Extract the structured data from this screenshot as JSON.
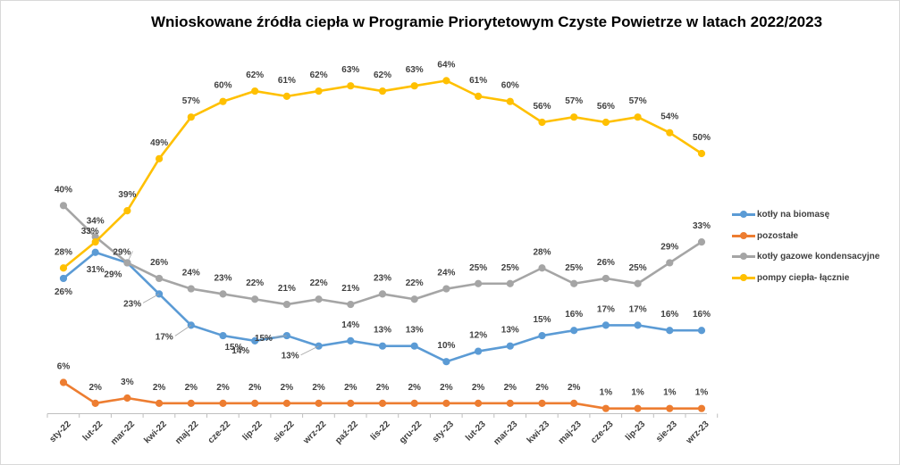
{
  "chart_data": {
    "type": "line",
    "title": "Wnioskowane źródła ciepła w Programie Priorytetowym Czyste Powietrze w latach 2022/2023",
    "xlabel": "",
    "ylabel": "",
    "ylim": [
      0,
      70
    ],
    "grid": false,
    "legend_position": "right",
    "categories": [
      "sty-22",
      "lut-22",
      "mar-22",
      "kwi-22",
      "maj-22",
      "cze-22",
      "lip-22",
      "sie-22",
      "wrz-22",
      "paź-22",
      "lis-22",
      "gru-22",
      "sty-23",
      "lut-23",
      "mar-23",
      "kwi-23",
      "maj-23",
      "cze-23",
      "lip-23",
      "sie-23",
      "wrz-23"
    ],
    "series": [
      {
        "name": "kotły na biomasę",
        "color": "#5b9bd5",
        "values": [
          26,
          31,
          29,
          23,
          17,
          15,
          14,
          15,
          13,
          14,
          13,
          13,
          10,
          12,
          13,
          15,
          16,
          17,
          17,
          16,
          16
        ],
        "labels": [
          "26%",
          "31%",
          "29%",
          "23%",
          "17%",
          "15%",
          "14%",
          "15%",
          "13%",
          "14%",
          "13%",
          "13%",
          "10%",
          "12%",
          "13%",
          "15%",
          "16%",
          "17%",
          "17%",
          "16%",
          "16%"
        ]
      },
      {
        "name": "pozostałe",
        "color": "#ed7d31",
        "values": [
          6,
          2,
          3,
          2,
          2,
          2,
          2,
          2,
          2,
          2,
          2,
          2,
          2,
          2,
          2,
          2,
          2,
          1,
          1,
          1,
          1
        ],
        "labels": [
          "6%",
          "2%",
          "3%",
          "2%",
          "2%",
          "2%",
          "2%",
          "2%",
          "2%",
          "2%",
          "2%",
          "2%",
          "2%",
          "2%",
          "2%",
          "2%",
          "2%",
          "1%",
          "1%",
          "1%",
          "1%"
        ]
      },
      {
        "name": "kotły gazowe kondensacyjne",
        "color": "#a5a5a5",
        "values": [
          40,
          34,
          29,
          26,
          24,
          23,
          22,
          21,
          22,
          21,
          23,
          22,
          24,
          25,
          25,
          28,
          25,
          26,
          25,
          29,
          33
        ],
        "labels": [
          "40%",
          "34%",
          "29%",
          "26%",
          "24%",
          "23%",
          "22%",
          "21%",
          "22%",
          "21%",
          "23%",
          "22%",
          "24%",
          "25%",
          "25%",
          "28%",
          "25%",
          "26%",
          "25%",
          "29%",
          "33%"
        ]
      },
      {
        "name": "pompy ciepła- łącznie",
        "color": "#ffc000",
        "values": [
          28,
          33,
          39,
          49,
          57,
          60,
          62,
          61,
          62,
          63,
          62,
          63,
          64,
          61,
          60,
          56,
          57,
          56,
          57,
          54,
          50
        ],
        "labels": [
          "28%",
          "33%",
          "39%",
          "49%",
          "57%",
          "60%",
          "62%",
          "61%",
          "62%",
          "63%",
          "62%",
          "63%",
          "64%",
          "61%",
          "60%",
          "56%",
          "57%",
          "56%",
          "57%",
          "54%",
          "50%"
        ]
      }
    ]
  }
}
